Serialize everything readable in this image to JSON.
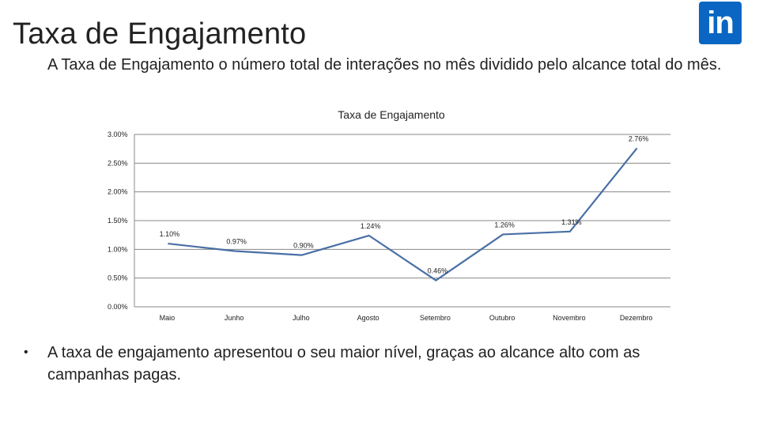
{
  "slide": {
    "title": "Taxa de Engajamento",
    "subtitle": "A Taxa de Engajamento o número total de interações no mês dividido pelo alcance total do mês.",
    "logo_text": "in",
    "logo_icon": "linkedin-icon",
    "bullet_symbol": "•",
    "bullet_text": "A taxa de engajamento apresentou o seu maior nível, graças ao alcance alto com as campanhas pagas."
  },
  "colors": {
    "line": "#4a6fa5",
    "axis": "#888888",
    "text": "#222222",
    "logo": "#0a66c2"
  },
  "chart_data": {
    "type": "line",
    "title": "Taxa de Engajamento",
    "xlabel": "",
    "ylabel": "",
    "categories": [
      "Maio",
      "Junho",
      "Julho",
      "Agosto",
      "Setembro",
      "Outubro",
      "Novembro",
      "Dezembro"
    ],
    "series": [
      {
        "values": [
          1.1,
          0.97,
          0.9,
          1.24,
          0.46,
          1.26,
          1.31,
          2.76
        ],
        "labels": [
          "1.10%",
          "0.97%",
          "0.90%",
          "1.24%",
          "0.46%",
          "1.26%",
          "1.31%",
          "2.76%"
        ]
      }
    ],
    "ylim": [
      0,
      3.0
    ],
    "yticks": [
      0,
      0.5,
      1.0,
      1.5,
      2.0,
      2.5,
      3.0
    ],
    "ytick_labels": [
      "0.00%",
      "0.50%",
      "1.00%",
      "1.50%",
      "2.00%",
      "2.50%",
      "3.00%"
    ],
    "grid": true,
    "legend": "none"
  }
}
